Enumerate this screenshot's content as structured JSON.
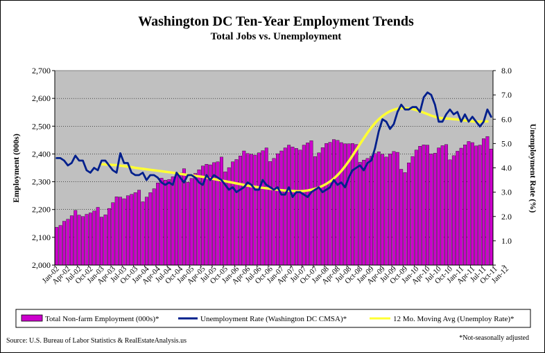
{
  "chart_data": {
    "type": "bar+line",
    "title": "Washington DC Ten-Year Employment Trends",
    "subtitle": "Total Jobs vs. Unemployment",
    "ylabel_left": "Employment (000s)",
    "ylabel_right": "Unemployment Rate (%)",
    "ylim_left": [
      2000,
      2700
    ],
    "ylim_right": [
      0,
      8
    ],
    "yticks_left": [
      "2,000",
      "2,100",
      "2,200",
      "2,300",
      "2,400",
      "2,500",
      "2,600",
      "2,700"
    ],
    "yticks_right": [
      "-",
      "1.0",
      "2.0",
      "3.0",
      "4.0",
      "5.0",
      "6.0",
      "7.0",
      "8.0"
    ],
    "grid": true,
    "legend_position": "bottom",
    "x_tick_labels": [
      "Jan-02",
      "Apr-02",
      "Jul-02",
      "Oct-02",
      "Jan-03",
      "Apr-03",
      "Jul-03",
      "Oct-03",
      "Jan-04",
      "Apr-04",
      "Jul-04",
      "Oct-04",
      "Jan-05",
      "Apr-05",
      "Jul-05",
      "Oct-05",
      "Jan-06",
      "Apr-06",
      "Jul-06",
      "Oct-06",
      "Jan-07",
      "Apr-07",
      "Jul-07",
      "Oct-07",
      "Jan-08",
      "Apr-08",
      "Jul-08",
      "Oct-08",
      "Jan-09",
      "Apr-09",
      "Jul-09",
      "Oct-09",
      "Jan-10",
      "Apr-10",
      "Jul-10",
      "Oct-10",
      "Jan-11",
      "Apr-11",
      "Jul-11",
      "Oct-11",
      "Jan-12"
    ],
    "series": [
      {
        "name": "Total Non-farm Employment (000s)*",
        "kind": "bar",
        "axis": "left",
        "color": "#cc00cc",
        "values": [
          2136,
          2143,
          2158,
          2165,
          2178,
          2197,
          2180,
          2175,
          2183,
          2188,
          2195,
          2208,
          2173,
          2181,
          2204,
          2225,
          2246,
          2245,
          2239,
          2250,
          2255,
          2261,
          2270,
          2228,
          2245,
          2261,
          2275,
          2296,
          2313,
          2306,
          2308,
          2318,
          2324,
          2332,
          2347,
          2298,
          2312,
          2330,
          2343,
          2357,
          2363,
          2361,
          2369,
          2372,
          2389,
          2336,
          2351,
          2372,
          2380,
          2393,
          2411,
          2402,
          2399,
          2396,
          2404,
          2412,
          2422,
          2373,
          2384,
          2401,
          2411,
          2422,
          2432,
          2425,
          2420,
          2414,
          2432,
          2440,
          2448,
          2391,
          2404,
          2423,
          2438,
          2442,
          2452,
          2449,
          2441,
          2437,
          2437,
          2438,
          2434,
          2370,
          2378,
          2384,
          2392,
          2402,
          2408,
          2399,
          2389,
          2400,
          2409,
          2406,
          2345,
          2333,
          2368,
          2391,
          2414,
          2428,
          2433,
          2432,
          2400,
          2403,
          2422,
          2430,
          2434,
          2379,
          2394,
          2410,
          2421,
          2433,
          2445,
          2441,
          2429,
          2432,
          2455,
          2463,
          2418
        ]
      },
      {
        "name": "Unemployment Rate (Washington DC CMSA)*",
        "kind": "line",
        "axis": "right",
        "color": "#001f8c",
        "values": [
          4.4,
          4.4,
          4.3,
          4.1,
          4.2,
          4.5,
          4.3,
          4.3,
          3.9,
          3.8,
          4.0,
          3.9,
          4.3,
          4.3,
          4.1,
          3.9,
          3.8,
          4.6,
          4.2,
          4.2,
          3.8,
          3.7,
          3.7,
          3.8,
          3.5,
          3.7,
          3.7,
          3.6,
          3.4,
          3.3,
          3.4,
          3.3,
          3.8,
          3.6,
          3.4,
          3.7,
          3.7,
          3.6,
          3.4,
          3.3,
          3.7,
          3.5,
          3.7,
          3.6,
          3.5,
          3.3,
          3.1,
          3.2,
          3.0,
          3.1,
          3.2,
          3.4,
          3.3,
          3.1,
          3.1,
          3.5,
          3.3,
          3.2,
          3.1,
          3.2,
          2.9,
          2.9,
          3.2,
          2.8,
          3.0,
          3.0,
          2.9,
          2.8,
          3.0,
          3.1,
          3.2,
          3.0,
          3.1,
          3.2,
          3.5,
          3.3,
          3.4,
          3.2,
          3.6,
          3.9,
          4.0,
          4.1,
          3.9,
          4.2,
          4.3,
          4.8,
          5.5,
          6.0,
          5.9,
          5.6,
          5.8,
          6.3,
          6.6,
          6.4,
          6.4,
          6.5,
          6.5,
          6.3,
          6.9,
          7.1,
          7.0,
          6.6,
          5.9,
          5.9,
          6.2,
          6.4,
          6.2,
          6.3,
          5.9,
          6.2,
          5.9,
          6.1,
          5.9,
          5.7,
          5.9,
          6.4,
          6.1
        ]
      },
      {
        "name": "12 Mo. Moving Avg (Unemploy Rate)*",
        "kind": "line",
        "axis": "right",
        "color": "#ffff33",
        "start_index": 12,
        "values": [
          4.15,
          4.14,
          4.13,
          4.12,
          4.11,
          4.09,
          4.07,
          4.05,
          4.03,
          4.0,
          3.98,
          3.96,
          3.94,
          3.92,
          3.9,
          3.88,
          3.86,
          3.84,
          3.82,
          3.8,
          3.77,
          3.75,
          3.73,
          3.71,
          3.69,
          3.67,
          3.65,
          3.63,
          3.6,
          3.57,
          3.54,
          3.51,
          3.48,
          3.45,
          3.42,
          3.39,
          3.36,
          3.33,
          3.3,
          3.27,
          3.24,
          3.22,
          3.2,
          3.18,
          3.16,
          3.14,
          3.12,
          3.1,
          3.08,
          3.07,
          3.06,
          3.05,
          3.04,
          3.04,
          3.05,
          3.07,
          3.1,
          3.14,
          3.19,
          3.26,
          3.34,
          3.44,
          3.56,
          3.7,
          3.87,
          4.06,
          4.27,
          4.5,
          4.74,
          4.98,
          5.21,
          5.44,
          5.65,
          5.84,
          6.0,
          6.13,
          6.24,
          6.33,
          6.39,
          6.43,
          6.45,
          6.45,
          6.44,
          6.42,
          6.38,
          6.33,
          6.27,
          6.21,
          6.15,
          6.1,
          6.06,
          6.04,
          6.03,
          6.02,
          6.0,
          5.99,
          5.97,
          5.95,
          5.93,
          5.91,
          5.9,
          5.9,
          5.91,
          5.91
        ]
      }
    ]
  },
  "footer": {
    "source": "Source: U.S. Bureau of Labor Statistics & RealEstateAnalysis.us",
    "note": "*Not-seasonally adjusted"
  }
}
